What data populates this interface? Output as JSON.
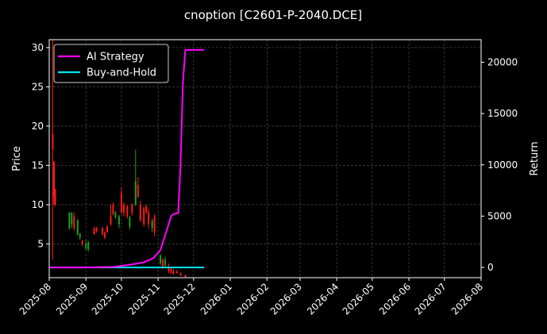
{
  "chart_data": {
    "type": "line",
    "title": "cnoption [C2601-P-2040.DCE]",
    "xlabel": "",
    "ylabel": "Price",
    "y2label": "Return",
    "x_ticks": [
      "2025-08",
      "2025-09",
      "2025-10",
      "2025-11",
      "2025-12",
      "2026-01",
      "2026-02",
      "2026-03",
      "2026-04",
      "2026-05",
      "2026-06",
      "2026-07",
      "2026-08"
    ],
    "xlim": [
      "2025-08-01",
      "2026-08-01"
    ],
    "price_ticks": [
      5,
      10,
      15,
      20,
      25,
      30
    ],
    "price_ylim": [
      0.7,
      31
    ],
    "return_ticks": [
      0,
      5000,
      10000,
      15000,
      20000
    ],
    "return_ylim": [
      -1000,
      22200
    ],
    "grid": true,
    "legend_position": "top-left",
    "legend": [
      {
        "label": "AI Strategy",
        "color": "#ff00ff"
      },
      {
        "label": "Buy-and-Hold",
        "color": "#00e5ee"
      }
    ],
    "candles": [
      {
        "date": "2025-08-04",
        "open": 19,
        "close": 17,
        "high": 31,
        "low": 3,
        "color": "#ff1a1a"
      },
      {
        "date": "2025-08-05",
        "open": 15.5,
        "close": 11,
        "high": 15.5,
        "low": 10,
        "color": "#ff1a1a"
      },
      {
        "date": "2025-08-06",
        "open": 12,
        "close": 10,
        "high": 12,
        "low": 9.8,
        "color": "#ff1a1a"
      },
      {
        "date": "2025-08-18",
        "open": 7,
        "close": 9,
        "high": 9,
        "low": 6.8,
        "color": "#1f9e1f"
      },
      {
        "date": "2025-08-20",
        "open": 9,
        "close": 7.5,
        "high": 9,
        "low": 7,
        "color": "#1f9e1f"
      },
      {
        "date": "2025-08-22",
        "open": 7,
        "close": 8.5,
        "high": 9,
        "low": 6.7,
        "color": "#ff1a1a"
      },
      {
        "date": "2025-08-25",
        "open": 8,
        "close": 6.2,
        "high": 8.2,
        "low": 6,
        "color": "#1f9e1f"
      },
      {
        "date": "2025-08-27",
        "open": 6.3,
        "close": 5.8,
        "high": 6.4,
        "low": 5.5,
        "color": "#1f9e1f"
      },
      {
        "date": "2025-08-29",
        "open": 5,
        "close": 5.4,
        "high": 5.5,
        "low": 4.7,
        "color": "#ff1a1a"
      },
      {
        "date": "2025-09-01",
        "open": 5,
        "close": 4.4,
        "high": 5.5,
        "low": 4.2,
        "color": "#1f9e1f"
      },
      {
        "date": "2025-09-03",
        "open": 5.2,
        "close": 4.3,
        "high": 5.4,
        "low": 4,
        "color": "#1f9e1f"
      },
      {
        "date": "2025-09-08",
        "open": 6.2,
        "close": 7,
        "high": 7.2,
        "low": 6.2,
        "color": "#ff1a1a"
      },
      {
        "date": "2025-09-10",
        "open": 7,
        "close": 6.6,
        "high": 7.2,
        "low": 6.4,
        "color": "#ff1a1a"
      },
      {
        "date": "2025-09-15",
        "open": 6.2,
        "close": 7,
        "high": 7.2,
        "low": 6.1,
        "color": "#ff1a1a"
      },
      {
        "date": "2025-09-17",
        "open": 6.5,
        "close": 5.8,
        "high": 6.6,
        "low": 5.6,
        "color": "#ff1a1a"
      },
      {
        "date": "2025-09-19",
        "open": 6.5,
        "close": 7.2,
        "high": 7.4,
        "low": 6.4,
        "color": "#ff1a1a"
      },
      {
        "date": "2025-09-22",
        "open": 7.5,
        "close": 8.5,
        "high": 10,
        "low": 7.3,
        "color": "#ff1a1a"
      },
      {
        "date": "2025-09-24",
        "open": 8.8,
        "close": 10,
        "high": 10.3,
        "low": 8.6,
        "color": "#ff1a1a"
      },
      {
        "date": "2025-09-26",
        "open": 9,
        "close": 8.4,
        "high": 9.2,
        "low": 8.2,
        "color": "#1f9e1f"
      },
      {
        "date": "2025-09-29",
        "open": 8.5,
        "close": 7.5,
        "high": 8.7,
        "low": 7,
        "color": "#1f9e1f"
      },
      {
        "date": "2025-10-01",
        "open": 9,
        "close": 11.5,
        "high": 12.2,
        "low": 8.8,
        "color": "#ff1a1a"
      },
      {
        "date": "2025-10-03",
        "open": 10,
        "close": 9,
        "high": 10.3,
        "low": 8.5,
        "color": "#ff1a1a"
      },
      {
        "date": "2025-10-06",
        "open": 8.5,
        "close": 9.8,
        "high": 10,
        "low": 8.2,
        "color": "#ff1a1a"
      },
      {
        "date": "2025-10-08",
        "open": 8.4,
        "close": 7.2,
        "high": 8.6,
        "low": 6.8,
        "color": "#1f9e1f"
      },
      {
        "date": "2025-10-10",
        "open": 10,
        "close": 9,
        "high": 10.2,
        "low": 8.6,
        "color": "#ff1a1a"
      },
      {
        "date": "2025-10-13",
        "open": 10,
        "close": 13,
        "high": 17,
        "low": 9.8,
        "color": "#1f9e1f"
      },
      {
        "date": "2025-10-15",
        "open": 11,
        "close": 12.5,
        "high": 13.5,
        "low": 10.8,
        "color": "#ff1a1a"
      },
      {
        "date": "2025-10-17",
        "open": 10,
        "close": 8,
        "high": 10.5,
        "low": 7.8,
        "color": "#ff1a1a"
      },
      {
        "date": "2025-10-20",
        "open": 9.5,
        "close": 7.5,
        "high": 9.8,
        "low": 7.2,
        "color": "#ff1a1a"
      },
      {
        "date": "2025-10-22",
        "open": 9,
        "close": 9.8,
        "high": 10,
        "low": 8.8,
        "color": "#ff1a1a"
      },
      {
        "date": "2025-10-24",
        "open": 9,
        "close": 7.5,
        "high": 9.5,
        "low": 7,
        "color": "#ff1a1a"
      },
      {
        "date": "2025-10-27",
        "open": 8,
        "close": 7,
        "high": 8.2,
        "low": 6.5,
        "color": "#1f9e1f"
      },
      {
        "date": "2025-10-29",
        "open": 8.5,
        "close": 6.5,
        "high": 8.8,
        "low": 6,
        "color": "#ff1a1a"
      },
      {
        "date": "2025-11-03",
        "open": 3.5,
        "close": 2.5,
        "high": 3.7,
        "low": 2.3,
        "color": "#1f9e1f"
      },
      {
        "date": "2025-11-05",
        "open": 3,
        "close": 2,
        "high": 3.2,
        "low": 1.8,
        "color": "#ff1a1a"
      },
      {
        "date": "2025-11-07",
        "open": 3,
        "close": 2.3,
        "high": 3.4,
        "low": 2,
        "color": "#1f9e1f"
      },
      {
        "date": "2025-11-10",
        "open": 2,
        "close": 1.5,
        "high": 2.5,
        "low": 1.3,
        "color": "#ff1a1a"
      },
      {
        "date": "2025-11-12",
        "open": 1.8,
        "close": 1.3,
        "high": 2,
        "low": 1.2,
        "color": "#ff1a1a"
      },
      {
        "date": "2025-11-14",
        "open": 1.5,
        "close": 1.2,
        "high": 1.8,
        "low": 1.1,
        "color": "#ff1a1a"
      },
      {
        "date": "2025-11-17",
        "open": 1.5,
        "close": 1.3,
        "high": 1.7,
        "low": 1.2,
        "color": "#ff1a1a"
      },
      {
        "date": "2025-11-20",
        "open": 1.2,
        "close": 1,
        "high": 1.4,
        "low": 0.9,
        "color": "#ff1a1a"
      },
      {
        "date": "2025-11-24",
        "open": 1,
        "close": 0.8,
        "high": 1.1,
        "low": 0.7,
        "color": "#ff1a1a"
      }
    ],
    "series": [
      {
        "name": "AI Strategy",
        "color": "#ff00ff",
        "axis": "right",
        "x": [
          "2025-08-01",
          "2025-09-01",
          "2025-09-25",
          "2025-10-10",
          "2025-10-20",
          "2025-10-28",
          "2025-11-03",
          "2025-11-08",
          "2025-11-12",
          "2025-11-14",
          "2025-11-18",
          "2025-11-20",
          "2025-11-22",
          "2025-11-24",
          "2025-12-10"
        ],
        "y": [
          0,
          0,
          50,
          300,
          500,
          900,
          1700,
          3500,
          5000,
          5200,
          5300,
          10000,
          18000,
          21200,
          21200
        ]
      },
      {
        "name": "Buy-and-Hold",
        "color": "#00e5ee",
        "axis": "right",
        "x": [
          "2025-08-01",
          "2025-12-10"
        ],
        "y": [
          0,
          0
        ]
      }
    ]
  }
}
